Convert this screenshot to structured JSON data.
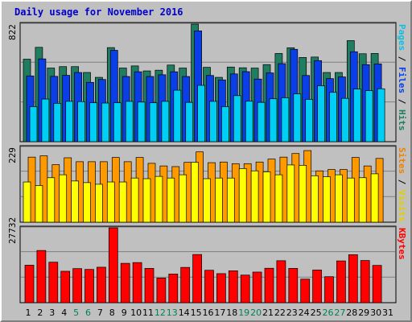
{
  "title": "Daily usage for November 2016",
  "chart_data": [
    {
      "type": "bar",
      "name": "hits-files-pages",
      "categories": [
        "1",
        "2",
        "3",
        "4",
        "5",
        "6",
        "7",
        "8",
        "9",
        "10",
        "11",
        "12",
        "13",
        "14",
        "15",
        "16",
        "17",
        "18",
        "19",
        "20",
        "21",
        "22",
        "23",
        "24",
        "25",
        "26",
        "27",
        "28",
        "29",
        "30",
        "31"
      ],
      "y_max_label": "822",
      "ylim": [
        0,
        822
      ],
      "series": [
        {
          "name": "Hits",
          "color": "#217d60",
          "values": [
            577,
            660,
            515,
            525,
            525,
            484,
            450,
            658,
            515,
            530,
            495,
            500,
            536,
            515,
            822,
            520,
            450,
            522,
            517,
            515,
            539,
            617,
            657,
            589,
            592,
            484,
            484,
            707,
            615,
            617,
            0
          ]
        },
        {
          "name": "Files",
          "color": "#0a3ee6",
          "values": [
            460,
            579,
            457,
            464,
            484,
            415,
            435,
            639,
            456,
            489,
            456,
            468,
            489,
            456,
            775,
            463,
            432,
            474,
            490,
            438,
            481,
            546,
            646,
            463,
            567,
            441,
            453,
            629,
            539,
            544,
            0
          ]
        },
        {
          "name": "Pages",
          "color": "#00cff5",
          "values": [
            245,
            298,
            268,
            282,
            280,
            272,
            270,
            272,
            282,
            277,
            272,
            282,
            360,
            275,
            394,
            282,
            245,
            322,
            283,
            275,
            300,
            307,
            334,
            296,
            391,
            345,
            303,
            368,
            357,
            370,
            0
          ]
        }
      ],
      "right_labels": [
        {
          "text": "Pages",
          "color": "#0fbfe0"
        },
        {
          "text": " / ",
          "color": "#000000"
        },
        {
          "text": "Files",
          "color": "#0a3ee6"
        },
        {
          "text": " / ",
          "color": "#000000"
        },
        {
          "text": "Hits",
          "color": "#217d60"
        }
      ]
    },
    {
      "type": "bar",
      "name": "visits-sites",
      "categories": [
        "1",
        "2",
        "3",
        "4",
        "5",
        "6",
        "7",
        "8",
        "9",
        "10",
        "11",
        "12",
        "13",
        "14",
        "15",
        "16",
        "17",
        "18",
        "19",
        "20",
        "21",
        "22",
        "23",
        "24",
        "25",
        "26",
        "27",
        "28",
        "29",
        "30",
        "31"
      ],
      "y_max_label": "229",
      "ylim": [
        0,
        229
      ],
      "series": [
        {
          "name": "Visits",
          "color": "#ff9900",
          "values": [
            199,
            203,
            176,
            197,
            185,
            185,
            185,
            198,
            185,
            198,
            180,
            172,
            170,
            183,
            215,
            182,
            184,
            179,
            179,
            184,
            193,
            199,
            210,
            219,
            157,
            161,
            161,
            198,
            172,
            195,
            0
          ]
        },
        {
          "name": "Sites",
          "color": "#ffff00",
          "values": [
            123,
            112,
            136,
            145,
            126,
            121,
            116,
            123,
            123,
            135,
            133,
            140,
            135,
            145,
            183,
            133,
            135,
            135,
            164,
            157,
            154,
            145,
            175,
            174,
            142,
            139,
            145,
            135,
            136,
            148,
            0
          ]
        }
      ],
      "right_labels": [
        {
          "text": "Sites",
          "color": "#f08000"
        },
        {
          "text": " / ",
          "color": "#000000"
        },
        {
          "text": "Visits",
          "color": "#e0d000"
        }
      ]
    },
    {
      "type": "bar",
      "name": "kbytes",
      "categories": [
        "1",
        "2",
        "3",
        "4",
        "5",
        "6",
        "7",
        "8",
        "9",
        "10",
        "11",
        "12",
        "13",
        "14",
        "15",
        "16",
        "17",
        "18",
        "19",
        "20",
        "21",
        "22",
        "23",
        "24",
        "25",
        "26",
        "27",
        "28",
        "29",
        "30",
        "31"
      ],
      "y_max_label": "27732",
      "ylim": [
        0,
        27732
      ],
      "series": [
        {
          "name": "KBytes",
          "color": "#ff0000",
          "values": [
            13890,
            19340,
            15000,
            11640,
            12620,
            12320,
            13140,
            27732,
            14580,
            14860,
            12700,
            9140,
            10630,
            13070,
            17850,
            12010,
            10760,
            11820,
            10220,
            11340,
            12750,
            15550,
            12700,
            8720,
            12100,
            9630,
            15470,
            17780,
            15620,
            13810,
            0
          ]
        }
      ],
      "right_labels": [
        {
          "text": "KBytes",
          "color": "#ff0000"
        }
      ]
    }
  ],
  "x_labels": [
    {
      "text": "1",
      "color": "#000000"
    },
    {
      "text": "2",
      "color": "#000000"
    },
    {
      "text": "3",
      "color": "#000000"
    },
    {
      "text": "4",
      "color": "#000000"
    },
    {
      "text": "5",
      "color": "#00805a"
    },
    {
      "text": "6",
      "color": "#00805a"
    },
    {
      "text": "7",
      "color": "#000000"
    },
    {
      "text": "8",
      "color": "#000000"
    },
    {
      "text": "9",
      "color": "#000000"
    },
    {
      "text": "10",
      "color": "#000000"
    },
    {
      "text": "11",
      "color": "#000000"
    },
    {
      "text": "12",
      "color": "#00805a"
    },
    {
      "text": "13",
      "color": "#00805a"
    },
    {
      "text": "14",
      "color": "#000000"
    },
    {
      "text": "15",
      "color": "#000000"
    },
    {
      "text": "16",
      "color": "#000000"
    },
    {
      "text": "17",
      "color": "#000000"
    },
    {
      "text": "18",
      "color": "#000000"
    },
    {
      "text": "19",
      "color": "#00805a"
    },
    {
      "text": "20",
      "color": "#00805a"
    },
    {
      "text": "21",
      "color": "#000000"
    },
    {
      "text": "22",
      "color": "#000000"
    },
    {
      "text": "23",
      "color": "#000000"
    },
    {
      "text": "24",
      "color": "#000000"
    },
    {
      "text": "25",
      "color": "#000000"
    },
    {
      "text": "26",
      "color": "#00805a"
    },
    {
      "text": "27",
      "color": "#00805a"
    },
    {
      "text": "28",
      "color": "#000000"
    },
    {
      "text": "29",
      "color": "#000000"
    },
    {
      "text": "30",
      "color": "#000000"
    },
    {
      "text": "31",
      "color": "#000000"
    }
  ],
  "colors": {
    "background": "#c0c0c0",
    "title": "#0000cc",
    "gridline": "#7f7f7f"
  }
}
